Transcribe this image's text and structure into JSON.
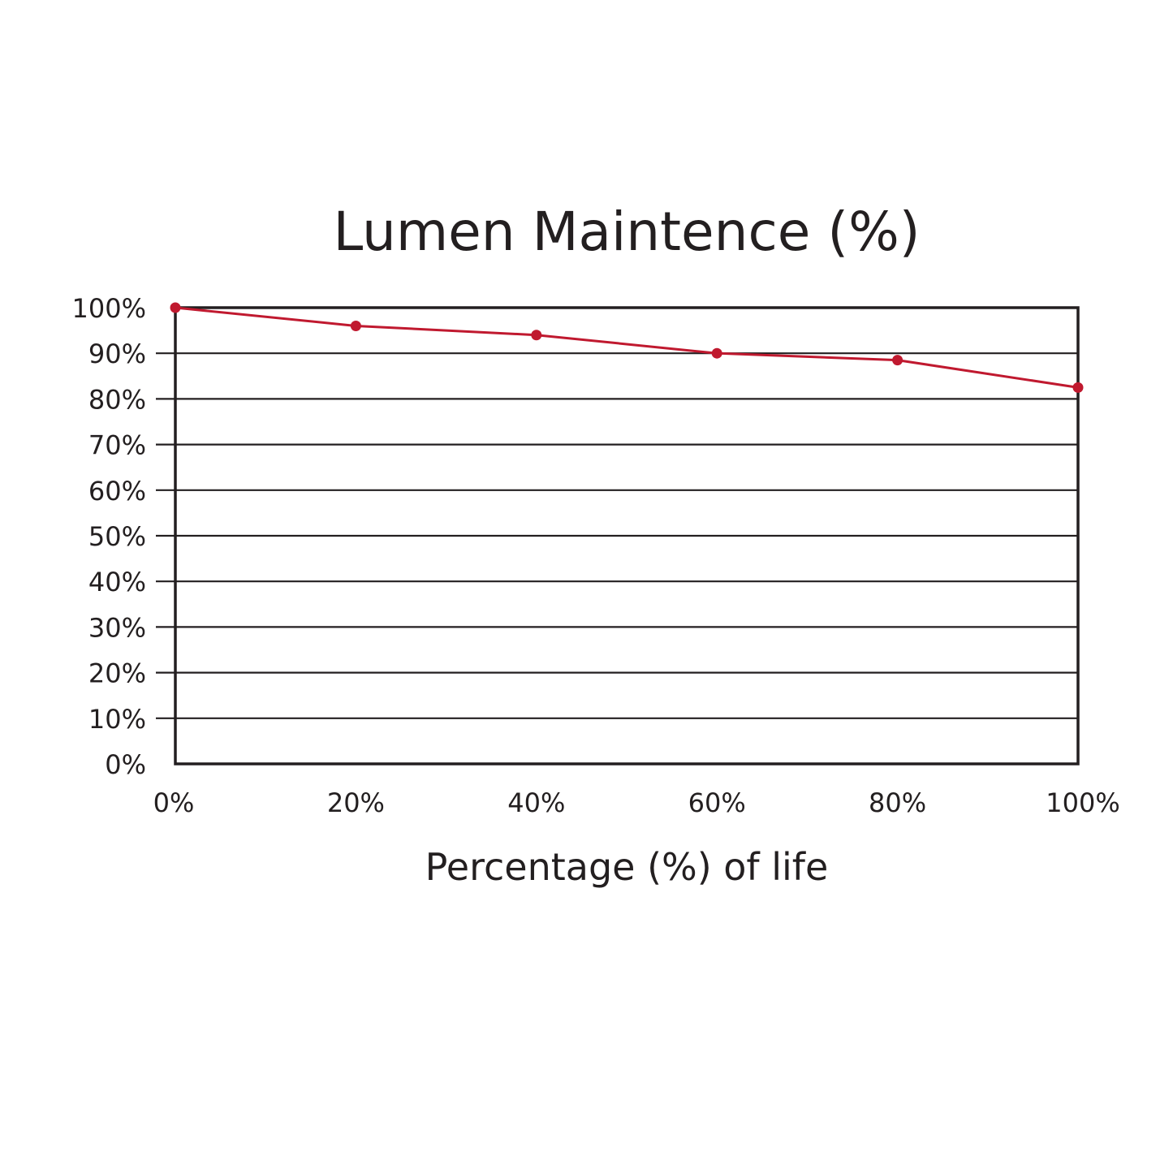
{
  "chart_data": {
    "type": "line",
    "title": "Lumen Maintence (%)",
    "xlabel": "Percentage (%) of life",
    "ylabel": "",
    "x": [
      0,
      20,
      40,
      60,
      80,
      100
    ],
    "x_tick_labels": [
      "0%",
      "20%",
      "40%",
      "60%",
      "80%",
      "100%"
    ],
    "y_tick_labels": [
      "0%",
      "10%",
      "20%",
      "30%",
      "40%",
      "50%",
      "60%",
      "70%",
      "80%",
      "90%",
      "100%"
    ],
    "y_ticks": [
      0,
      10,
      20,
      30,
      40,
      50,
      60,
      70,
      80,
      90,
      100
    ],
    "xlim": [
      0,
      100
    ],
    "ylim": [
      0,
      100
    ],
    "grid": "horizontal",
    "legend": "none",
    "series": [
      {
        "values": [
          100,
          96,
          94,
          90,
          88.5,
          82.5
        ],
        "color": "#c0192f"
      }
    ],
    "colors": {
      "line": "#c0192f",
      "grid": "#231f20",
      "frame": "#231f20",
      "text": "#231f20"
    }
  }
}
